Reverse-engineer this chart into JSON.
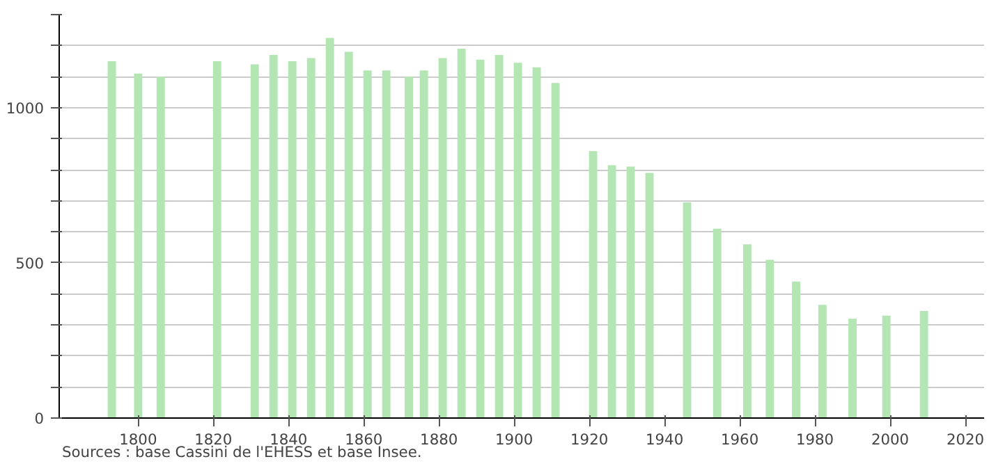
{
  "chart_data": {
    "type": "bar",
    "x": [
      1793,
      1800,
      1806,
      1821,
      1831,
      1836,
      1841,
      1846,
      1851,
      1856,
      1861,
      1866,
      1872,
      1876,
      1881,
      1886,
      1891,
      1896,
      1901,
      1906,
      1911,
      1921,
      1926,
      1931,
      1936,
      1946,
      1954,
      1962,
      1968,
      1975,
      1982,
      1990,
      1999,
      2009
    ],
    "values": [
      1150,
      1110,
      1100,
      1150,
      1140,
      1170,
      1150,
      1160,
      1225,
      1180,
      1120,
      1120,
      1100,
      1120,
      1160,
      1190,
      1155,
      1170,
      1145,
      1130,
      1080,
      860,
      815,
      810,
      790,
      695,
      610,
      560,
      510,
      440,
      365,
      320,
      330,
      345
    ],
    "color": "#b3e6b3",
    "xlim": [
      1779,
      2025
    ],
    "ylim": [
      0,
      1300
    ],
    "xticks": [
      1800,
      1820,
      1840,
      1860,
      1880,
      1900,
      1920,
      1940,
      1960,
      1980,
      2000,
      2020
    ],
    "yticks": [
      0,
      {
        "value": 100,
        "label": null
      },
      {
        "value": 200,
        "label": null
      },
      {
        "value": 300,
        "label": null
      },
      {
        "value": 400,
        "label": null
      },
      500,
      {
        "value": 600,
        "label": null
      },
      {
        "value": 700,
        "label": null
      },
      {
        "value": 800,
        "label": null
      },
      {
        "value": 900,
        "label": null
      },
      1000,
      {
        "value": 1100,
        "label": null
      },
      {
        "value": 1200,
        "label": null
      },
      {
        "value": 1300,
        "label": null
      }
    ],
    "grid": "y",
    "annotations": [
      "Sources : base Cassini de l'EHESS et base Insee."
    ]
  }
}
